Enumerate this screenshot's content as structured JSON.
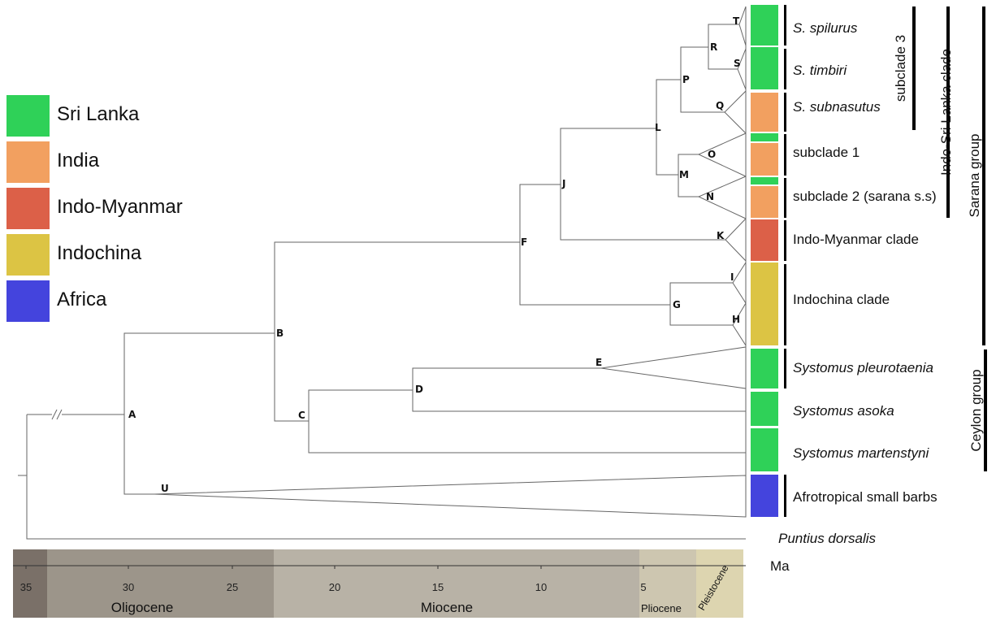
{
  "legend": [
    {
      "label": "Sri Lanka",
      "color": "#2fd158"
    },
    {
      "label": "India",
      "color": "#f2a060"
    },
    {
      "label": "Indo-Myanmar",
      "color": "#dc6048"
    },
    {
      "label": "Indochina",
      "color": "#dcc444"
    },
    {
      "label": "Africa",
      "color": "#4444dd"
    }
  ],
  "nodes": [
    "A",
    "B",
    "C",
    "D",
    "E",
    "F",
    "G",
    "H",
    "I",
    "J",
    "K",
    "L",
    "M",
    "N",
    "O",
    "P",
    "Q",
    "R",
    "S",
    "T",
    "U"
  ],
  "tips": [
    {
      "label": "S. spilurus",
      "italic": true
    },
    {
      "label": "S. timbiri",
      "italic": true
    },
    {
      "label": "S. subnasutus",
      "italic": true
    },
    {
      "label": "subclade 1",
      "italic": false
    },
    {
      "label": "subclade 2 (sarana s.s)",
      "italic": false
    },
    {
      "label": "Indo-Myanmar clade",
      "italic": false
    },
    {
      "label": "Indochina clade",
      "italic": false
    },
    {
      "label": "Systomus pleurotaenia",
      "italic": true
    },
    {
      "label": "Systomus asoka",
      "italic": true
    },
    {
      "label": "Systomus martenstyni",
      "italic": true
    },
    {
      "label": "Afrotropical small barbs",
      "italic": false
    },
    {
      "label": "Puntius dorsalis",
      "italic": true
    }
  ],
  "groups": [
    "subclade 3",
    "Indo-Sri Lanka clade",
    "Sarana group",
    "Ceylon group"
  ],
  "timescale": {
    "unit": "Ma",
    "ticks": [
      "35",
      "30",
      "25",
      "20",
      "15",
      "10",
      "5"
    ],
    "epochs": [
      "Oligocene",
      "Miocene",
      "Pliocene",
      "Pleistocene"
    ]
  }
}
